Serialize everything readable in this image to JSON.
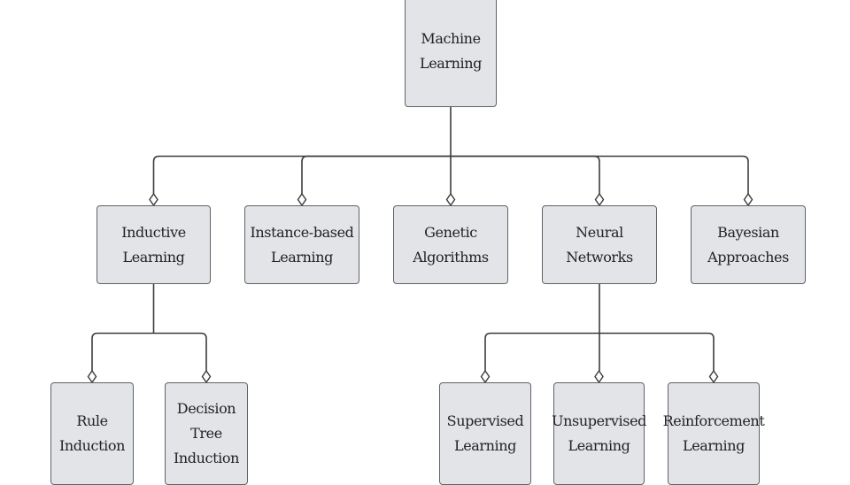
{
  "colors": {
    "node_fill": "#e3e4e7",
    "node_border": "#5f6368",
    "connector": "#3c3c3c",
    "text": "#222222"
  },
  "nodes": {
    "root": {
      "lines": [
        "Machine",
        "Learning"
      ]
    },
    "inductive": {
      "lines": [
        "Inductive",
        "Learning"
      ]
    },
    "instance": {
      "lines": [
        "Instance-based",
        "Learning"
      ]
    },
    "genetic": {
      "lines": [
        "Genetic",
        "Algorithms"
      ]
    },
    "neural": {
      "lines": [
        "Neural Networks"
      ]
    },
    "bayesian": {
      "lines": [
        "Bayesian",
        "Approaches"
      ]
    },
    "rule": {
      "lines": [
        "Rule",
        "Induction"
      ]
    },
    "decision": {
      "lines": [
        "Decision",
        "Tree",
        "Induction"
      ]
    },
    "supervised": {
      "lines": [
        "Supervised",
        "Learning"
      ]
    },
    "unsupervised": {
      "lines": [
        "Unsupervised",
        "Learning"
      ]
    },
    "reinforcement": {
      "lines": [
        "Reinforcement",
        "Learning"
      ]
    }
  },
  "edges": [
    {
      "from": "root",
      "to": "inductive"
    },
    {
      "from": "root",
      "to": "instance"
    },
    {
      "from": "root",
      "to": "genetic"
    },
    {
      "from": "root",
      "to": "neural"
    },
    {
      "from": "root",
      "to": "bayesian"
    },
    {
      "from": "inductive",
      "to": "rule"
    },
    {
      "from": "inductive",
      "to": "decision"
    },
    {
      "from": "neural",
      "to": "supervised"
    },
    {
      "from": "neural",
      "to": "unsupervised"
    },
    {
      "from": "neural",
      "to": "reinforcement"
    }
  ]
}
